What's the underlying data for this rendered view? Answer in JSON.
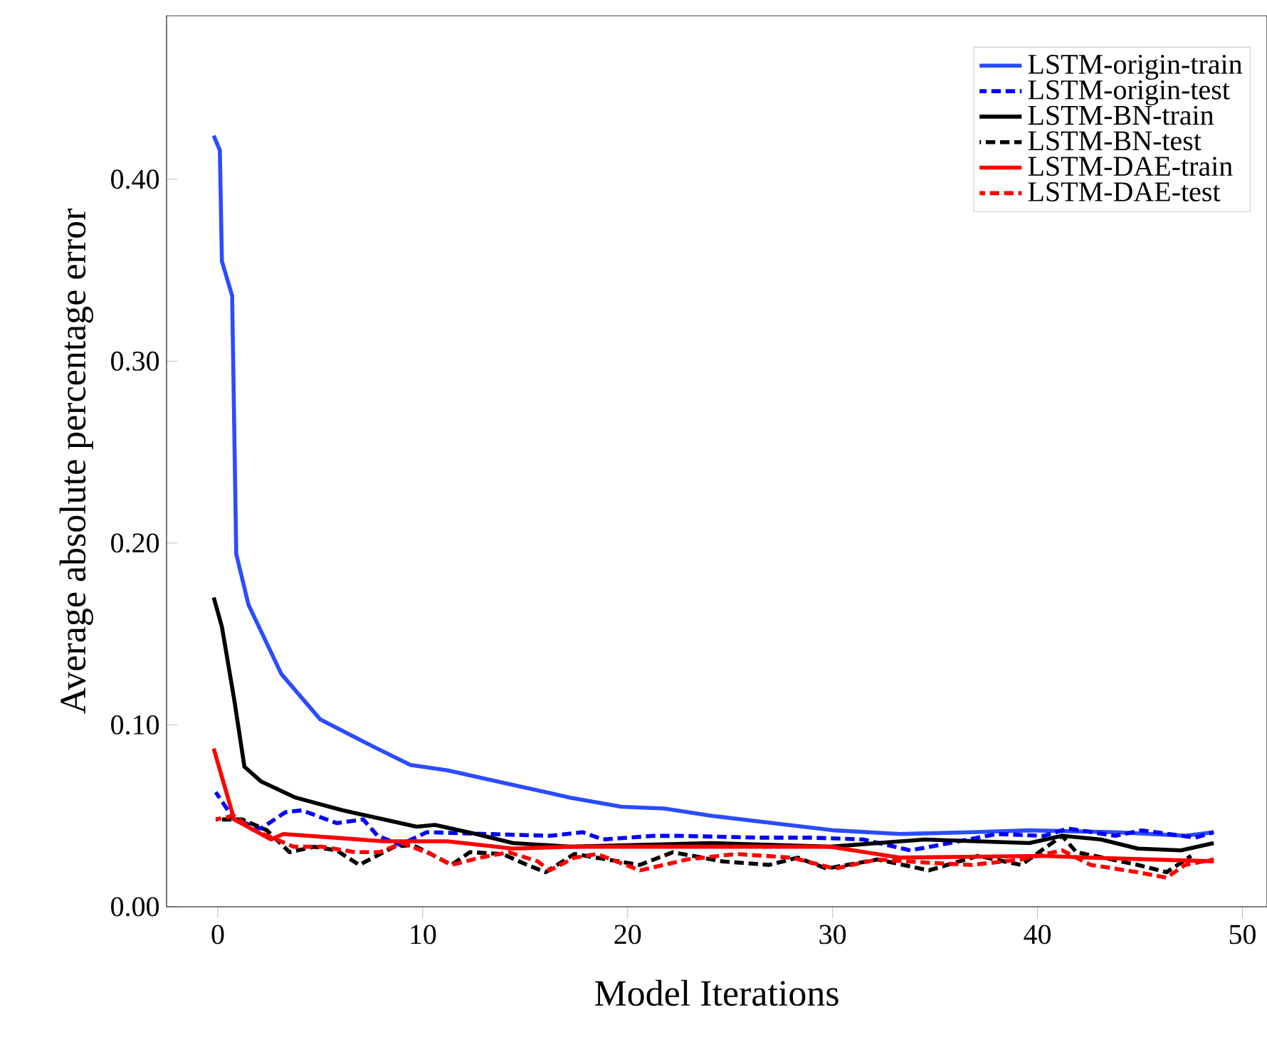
{
  "chart_data": {
    "type": "line",
    "xlabel": "Model Iterations",
    "ylabel": "Average absolute percentage error",
    "xlim": [
      -2.5,
      51.2
    ],
    "ylim": [
      0,
      0.49
    ],
    "xticks": [
      0,
      10,
      20,
      30,
      40,
      50
    ],
    "yticks": [
      {
        "value": 0,
        "label": "0.00"
      },
      {
        "value": 0.1,
        "label": "0.10"
      },
      {
        "value": 0.2,
        "label": "0.20"
      },
      {
        "value": 0.3,
        "label": "0.30"
      },
      {
        "value": 0.4,
        "label": "0.40"
      }
    ],
    "grid": false,
    "legend": "top right",
    "marker": "none",
    "series": [
      {
        "name": "LSTM-origin-train",
        "color": "#2b4cff",
        "line_style": "solid",
        "x": [
          -0.2,
          0.1,
          0.2,
          0.7,
          0.8,
          0.9,
          1.5,
          3.1,
          5,
          7.6,
          9.4,
          11.2,
          14,
          17.2,
          19.7,
          21.8,
          24.1,
          27.1,
          30.1,
          33.3,
          36.8,
          39.6,
          43.8,
          47.2,
          48.6
        ],
        "values": [
          0.424,
          0.416,
          0.355,
          0.336,
          0.265,
          0.194,
          0.166,
          0.128,
          0.103,
          0.088,
          0.078,
          0.075,
          0.068,
          0.06,
          0.055,
          0.054,
          0.05,
          0.046,
          0.042,
          0.04,
          0.041,
          0.042,
          0.041,
          0.039,
          0.041
        ]
      },
      {
        "name": "LSTM-origin-test",
        "color": "#0000ff",
        "line_style": "dashed",
        "x": [
          -0.1,
          0.8,
          2.1,
          3.3,
          4.1,
          5.8,
          7.1,
          7.8,
          8.9,
          10.2,
          16.2,
          17.8,
          18.8,
          21.3,
          22.5,
          26.4,
          29,
          31.5,
          33.8,
          35.7,
          38,
          40.3,
          41.5,
          43.8,
          45.1,
          47.7,
          48.6
        ],
        "values": [
          0.063,
          0.048,
          0.043,
          0.052,
          0.053,
          0.046,
          0.048,
          0.039,
          0.034,
          0.041,
          0.039,
          0.041,
          0.037,
          0.039,
          0.039,
          0.038,
          0.038,
          0.037,
          0.031,
          0.035,
          0.04,
          0.039,
          0.043,
          0.039,
          0.042,
          0.038,
          0.041
        ]
      },
      {
        "name": "LSTM-BN-train",
        "color": "#000000",
        "line_style": "solid",
        "x": [
          -0.2,
          0.2,
          0.8,
          1.3,
          2.1,
          3.8,
          6.1,
          8.1,
          9.7,
          10.6,
          12.6,
          14.4,
          17.2,
          24.1,
          29.9,
          34.5,
          39.6,
          41.2,
          43.1,
          44.9,
          47,
          48.6
        ],
        "values": [
          0.17,
          0.154,
          0.114,
          0.077,
          0.069,
          0.06,
          0.053,
          0.048,
          0.044,
          0.045,
          0.04,
          0.035,
          0.033,
          0.035,
          0.033,
          0.037,
          0.035,
          0.039,
          0.037,
          0.032,
          0.031,
          0.035
        ]
      },
      {
        "name": "LSTM-BN-test",
        "color": "#000000",
        "line_style": "dashed",
        "x": [
          -0.1,
          1.2,
          2.4,
          3.5,
          4.7,
          5.8,
          6.9,
          8.6,
          9.5,
          10.4,
          11.4,
          12.3,
          13.9,
          15.1,
          16,
          17.4,
          20.6,
          22.2,
          24.6,
          26.9,
          28.3,
          29.7,
          32.2,
          34.7,
          37.1,
          39.2,
          41.2,
          41.9,
          44.9,
          46.3,
          47.5
        ],
        "values": [
          0.048,
          0.048,
          0.042,
          0.03,
          0.033,
          0.031,
          0.023,
          0.033,
          0.034,
          0.029,
          0.023,
          0.03,
          0.029,
          0.023,
          0.019,
          0.029,
          0.023,
          0.03,
          0.025,
          0.023,
          0.027,
          0.021,
          0.026,
          0.02,
          0.028,
          0.023,
          0.039,
          0.03,
          0.023,
          0.019,
          0.028
        ]
      },
      {
        "name": "LSTM-DAE-train",
        "color": "#ff0000",
        "line_style": "solid",
        "x": [
          -0.2,
          0.8,
          2.6,
          3.2,
          8.1,
          11.2,
          14.4,
          17.2,
          29.9,
          33.3,
          40.3,
          42.6,
          48.6
        ],
        "values": [
          0.087,
          0.048,
          0.037,
          0.04,
          0.036,
          0.036,
          0.032,
          0.033,
          0.033,
          0.027,
          0.028,
          0.027,
          0.025
        ]
      },
      {
        "name": "LSTM-DAE-test",
        "color": "#ff0000",
        "line_style": "dashed",
        "x": [
          -0.1,
          0.8,
          1.6,
          3.7,
          5.1,
          6.7,
          7.9,
          9,
          10.4,
          11.4,
          12.8,
          14.2,
          15.6,
          16.2,
          17.4,
          18.5,
          20.6,
          22.9,
          25.3,
          28,
          30.1,
          32.2,
          35,
          36.8,
          39.2,
          41.2,
          42.6,
          44.9,
          46.3,
          47.2,
          48.6
        ],
        "values": [
          0.048,
          0.05,
          0.043,
          0.033,
          0.033,
          0.03,
          0.03,
          0.035,
          0.029,
          0.023,
          0.027,
          0.03,
          0.025,
          0.02,
          0.027,
          0.029,
          0.02,
          0.026,
          0.029,
          0.027,
          0.021,
          0.026,
          0.024,
          0.023,
          0.026,
          0.031,
          0.023,
          0.019,
          0.016,
          0.023,
          0.026
        ]
      }
    ]
  }
}
